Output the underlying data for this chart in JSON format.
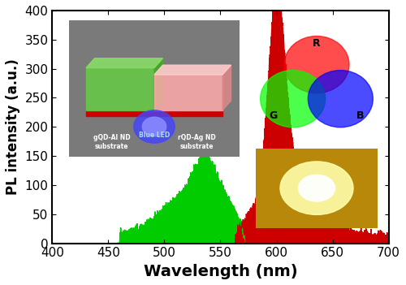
{
  "title": "",
  "xlabel": "Wavelength (nm)",
  "ylabel": "PL intensity (a.u.)",
  "xlim": [
    400,
    700
  ],
  "ylim": [
    0,
    400
  ],
  "xticks": [
    400,
    450,
    500,
    550,
    600,
    650,
    700
  ],
  "yticks": [
    0,
    50,
    100,
    150,
    200,
    250,
    300,
    350,
    400
  ],
  "xlabel_fontsize": 14,
  "ylabel_fontsize": 12,
  "tick_fontsize": 11,
  "green_color": "#00CC00",
  "red_color": "#CC0000",
  "background_color": "#ffffff",
  "figsize": [
    5.0,
    3.51
  ],
  "dpi": 100
}
